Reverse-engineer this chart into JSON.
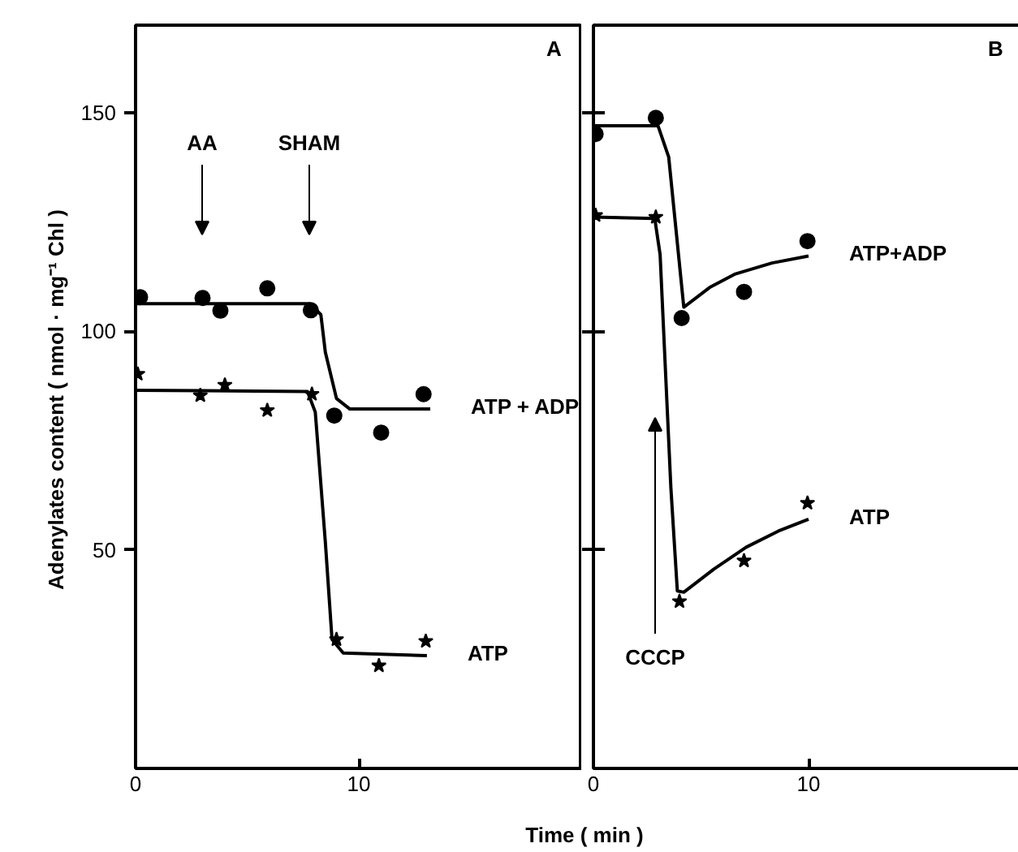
{
  "chart_data": [
    {
      "type": "line",
      "title": "A",
      "xlabel": "Time ( min )",
      "ylabel": "Adenylates content  ( nmol · mg⁻¹ Chl )",
      "xlim": [
        0,
        20
      ],
      "ylim": [
        0,
        170
      ],
      "xticks": [
        0,
        10
      ],
      "yticks": [
        50,
        100,
        150
      ],
      "grid": false,
      "annotations": [
        "AA",
        "SHAM"
      ],
      "series": [
        {
          "type": "scatter",
          "marker": "circle",
          "color": "#000000",
          "x": [
            0.2,
            3.0,
            3.8,
            5.9,
            7.85,
            8.9,
            11.0,
            12.9
          ],
          "values": [
            107.8,
            107.6,
            104.7,
            109.8,
            104.8,
            80.7,
            76.8,
            85.6
          ]
        },
        {
          "name": "ATP + ADP",
          "line_style": "solid",
          "color": "#000000",
          "x": [
            0,
            7.8,
            8.3,
            8.5,
            9.0,
            9.6,
            13.2
          ],
          "values": [
            106.3,
            106.3,
            103.8,
            95.2,
            84.6,
            82.2,
            82.2
          ]
        },
        {
          "type": "scatter",
          "marker": "star",
          "color": "#000000",
          "x": [
            0.1,
            2.9,
            4.0,
            5.9,
            7.9,
            9.0,
            10.9,
            13.0
          ],
          "values": [
            90.2,
            85.3,
            87.7,
            81.9,
            85.6,
            29.5,
            23.5,
            29.1
          ]
        },
        {
          "name": "ATP",
          "line_style": "solid",
          "color": "#000000",
          "x": [
            0,
            7.7,
            8.05,
            8.5,
            8.8,
            9.3,
            13.05
          ],
          "values": [
            86.5,
            86.2,
            81.5,
            51.8,
            29.5,
            26.4,
            25.8
          ]
        }
      ]
    },
    {
      "type": "line",
      "title": "B",
      "xlim": [
        0,
        20
      ],
      "ylim": [
        0,
        170
      ],
      "xticks": [
        0,
        10
      ],
      "yticks": [
        50,
        100,
        150
      ],
      "tick_labels": "x",
      "grid": false,
      "annotations": [
        "CCCP"
      ],
      "series": [
        {
          "type": "scatter",
          "marker": "circle",
          "color": "#000000",
          "x": [
            0.1,
            2.9,
            4.1,
            7.0,
            9.95
          ],
          "values": [
            145.1,
            148.8,
            103,
            109,
            120.6
          ]
        },
        {
          "name": "ATP+ADP",
          "line_style": "solid",
          "color": "#000000",
          "x": [
            0,
            3.0,
            3.5,
            4.2,
            5.4,
            6.6,
            8.3,
            10
          ],
          "values": [
            147,
            147,
            139.8,
            105.5,
            110,
            113.1,
            115.6,
            117.2
          ]
        },
        {
          "type": "scatter",
          "marker": "star",
          "color": "#000000",
          "x": [
            0.1,
            2.9,
            4.0,
            7.0,
            9.95
          ],
          "values": [
            126.5,
            126.1,
            38.2,
            47.5,
            60.7
          ]
        },
        {
          "name": "ATP",
          "line_style": "solid",
          "color": "#000000",
          "x": [
            0,
            2.85,
            3.1,
            3.6,
            3.9,
            4.2,
            5.6,
            7.1,
            8.6,
            10
          ],
          "values": [
            126.1,
            125.8,
            117.5,
            64.2,
            40.6,
            40.3,
            45.6,
            50.6,
            54.3,
            57
          ]
        }
      ]
    }
  ]
}
